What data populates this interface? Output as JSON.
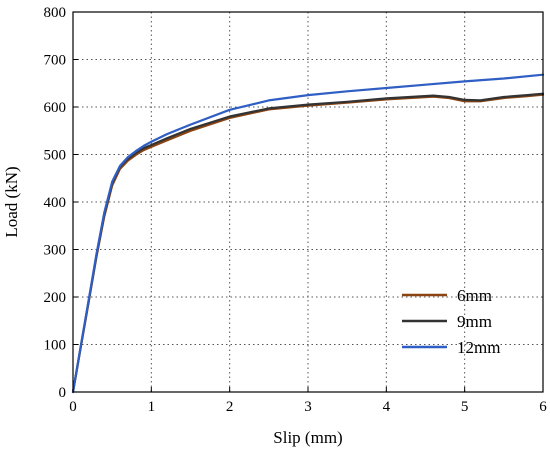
{
  "chart_data": {
    "type": "line",
    "title": "",
    "xlabel": "Slip (mm)",
    "ylabel": "Load (kN)",
    "xlim": [
      0,
      6
    ],
    "ylim": [
      0,
      800
    ],
    "xticks": [
      0,
      1,
      2,
      3,
      4,
      5,
      6
    ],
    "yticks": [
      0,
      100,
      200,
      300,
      400,
      500,
      600,
      700,
      800
    ],
    "grid": true,
    "legend_position": "bottom-right",
    "series": [
      {
        "name": "6mm",
        "color": "#8b4513",
        "x": [
          0,
          0.1,
          0.2,
          0.3,
          0.4,
          0.5,
          0.6,
          0.7,
          0.8,
          0.9,
          1.0,
          1.2,
          1.5,
          2.0,
          2.5,
          3.0,
          3.5,
          4.0,
          4.3,
          4.6,
          4.8,
          5.0,
          5.2,
          5.5,
          5.8,
          6.0
        ],
        "y": [
          0,
          95,
          190,
          285,
          370,
          435,
          470,
          487,
          499,
          509,
          516,
          530,
          550,
          577,
          595,
          603,
          609,
          616,
          619,
          622,
          619,
          612,
          612,
          619,
          623,
          626
        ]
      },
      {
        "name": "9mm",
        "color": "#333333",
        "x": [
          0,
          0.1,
          0.2,
          0.3,
          0.4,
          0.5,
          0.6,
          0.7,
          0.8,
          0.9,
          1.0,
          1.2,
          1.5,
          2.0,
          2.5,
          3.0,
          3.5,
          4.0,
          4.3,
          4.6,
          4.8,
          5.0,
          5.2,
          5.5,
          5.8,
          6.0
        ],
        "y": [
          0,
          96,
          192,
          288,
          374,
          440,
          474,
          491,
          503,
          513,
          520,
          534,
          554,
          580,
          597,
          605,
          611,
          618,
          621,
          624,
          621,
          615,
          614,
          621,
          625,
          628
        ]
      },
      {
        "name": "12mm",
        "color": "#2f5ec4",
        "x": [
          0,
          0.1,
          0.2,
          0.3,
          0.4,
          0.5,
          0.6,
          0.7,
          0.8,
          0.9,
          1.0,
          1.2,
          1.5,
          2.0,
          2.5,
          3.0,
          3.5,
          4.0,
          4.5,
          5.0,
          5.5,
          6.0
        ],
        "y": [
          0,
          97,
          194,
          291,
          378,
          443,
          476,
          494,
          507,
          518,
          527,
          543,
          563,
          594,
          614,
          625,
          633,
          640,
          647,
          654,
          660,
          668
        ]
      }
    ]
  }
}
